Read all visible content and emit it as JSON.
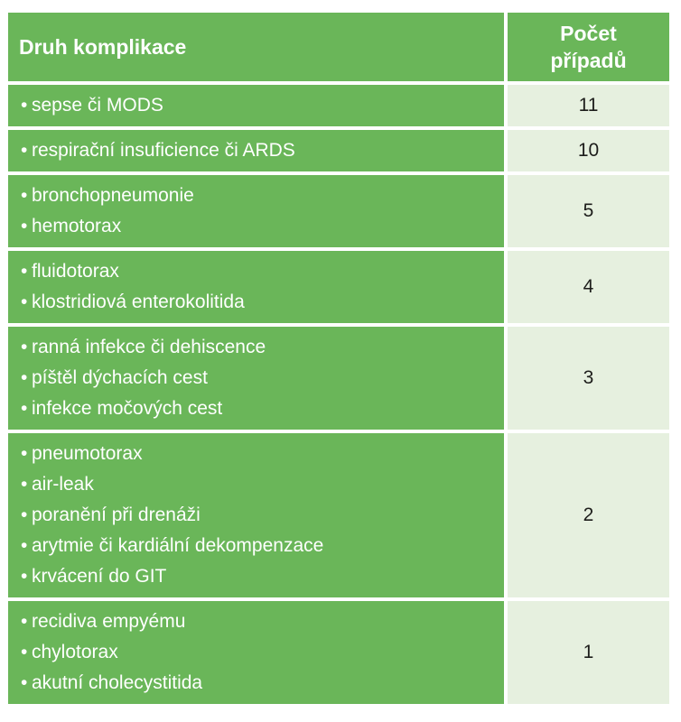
{
  "header": {
    "col1": "Druh komplikace",
    "col2_line1": "Počet",
    "col2_line2": "případů"
  },
  "rows": [
    {
      "items": [
        "sepse či MODS"
      ],
      "count": "11"
    },
    {
      "items": [
        "respirační insuficience či ARDS"
      ],
      "count": "10"
    },
    {
      "items": [
        "bronchopneumonie",
        "hemotorax"
      ],
      "count": "5"
    },
    {
      "items": [
        "fluidotorax",
        "klostridiová enterokolitida"
      ],
      "count": "4"
    },
    {
      "items": [
        "ranná infekce či dehiscence",
        "píštěl dýchacích cest",
        "infekce močových cest"
      ],
      "count": "3"
    },
    {
      "items": [
        "pneumotorax",
        "air-leak",
        "poranění při drenáži",
        "arytmie či kardiální dekompenzace",
        "krvácení do GIT"
      ],
      "count": "2"
    },
    {
      "items": [
        "recidiva empyému",
        "chylotorax",
        "akutní cholecystitida"
      ],
      "count": "1"
    }
  ],
  "bullet": "•"
}
